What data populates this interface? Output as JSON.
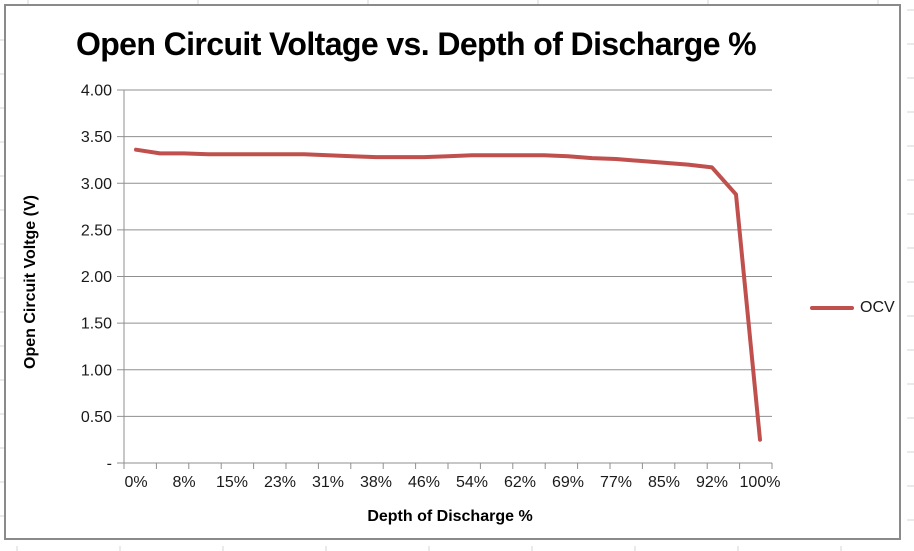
{
  "window": {
    "background": "#ffffff",
    "chart_border_color": "#8a8a8a",
    "worksheet_gridline_color": "#d4d4d4"
  },
  "chart_data": {
    "type": "line",
    "title": "Open Circuit Voltage vs. Depth of Discharge %",
    "xlabel": "Depth of Discharge %",
    "ylabel": "Open Circuit Voltge (V)",
    "x_tick_labels": [
      "0%",
      "8%",
      "15%",
      "23%",
      "31%",
      "38%",
      "46%",
      "54%",
      "62%",
      "69%",
      "77%",
      "85%",
      "92%",
      "100%"
    ],
    "y_tick_labels": [
      "4.00",
      "3.50",
      "3.00",
      "2.50",
      "2.00",
      "1.50",
      "1.00",
      "0.50",
      "-"
    ],
    "ylim": [
      0,
      4
    ],
    "y_major_step": 0.5,
    "grid": "horizontal-major-on",
    "gridline_color": "#8f8f8f",
    "axis_color": "#8f8f8f",
    "tick_label_color": "#1a1a1a",
    "x": [
      0,
      3.8,
      7.7,
      11.5,
      15.4,
      19.2,
      23.1,
      26.9,
      30.8,
      34.6,
      38.5,
      42.3,
      46.2,
      50.0,
      53.8,
      57.7,
      61.5,
      65.4,
      69.2,
      73.1,
      76.9,
      80.8,
      84.6,
      88.5,
      92.3,
      96.2,
      100.0
    ],
    "series": [
      {
        "name": "OCV",
        "color": "#C0504D",
        "values": [
          3.36,
          3.32,
          3.32,
          3.31,
          3.31,
          3.31,
          3.31,
          3.31,
          3.3,
          3.29,
          3.28,
          3.28,
          3.28,
          3.29,
          3.3,
          3.3,
          3.3,
          3.3,
          3.29,
          3.27,
          3.26,
          3.24,
          3.22,
          3.2,
          3.17,
          2.88,
          0.25
        ]
      }
    ],
    "legend": {
      "position": "right",
      "entries": [
        "OCV"
      ]
    }
  }
}
